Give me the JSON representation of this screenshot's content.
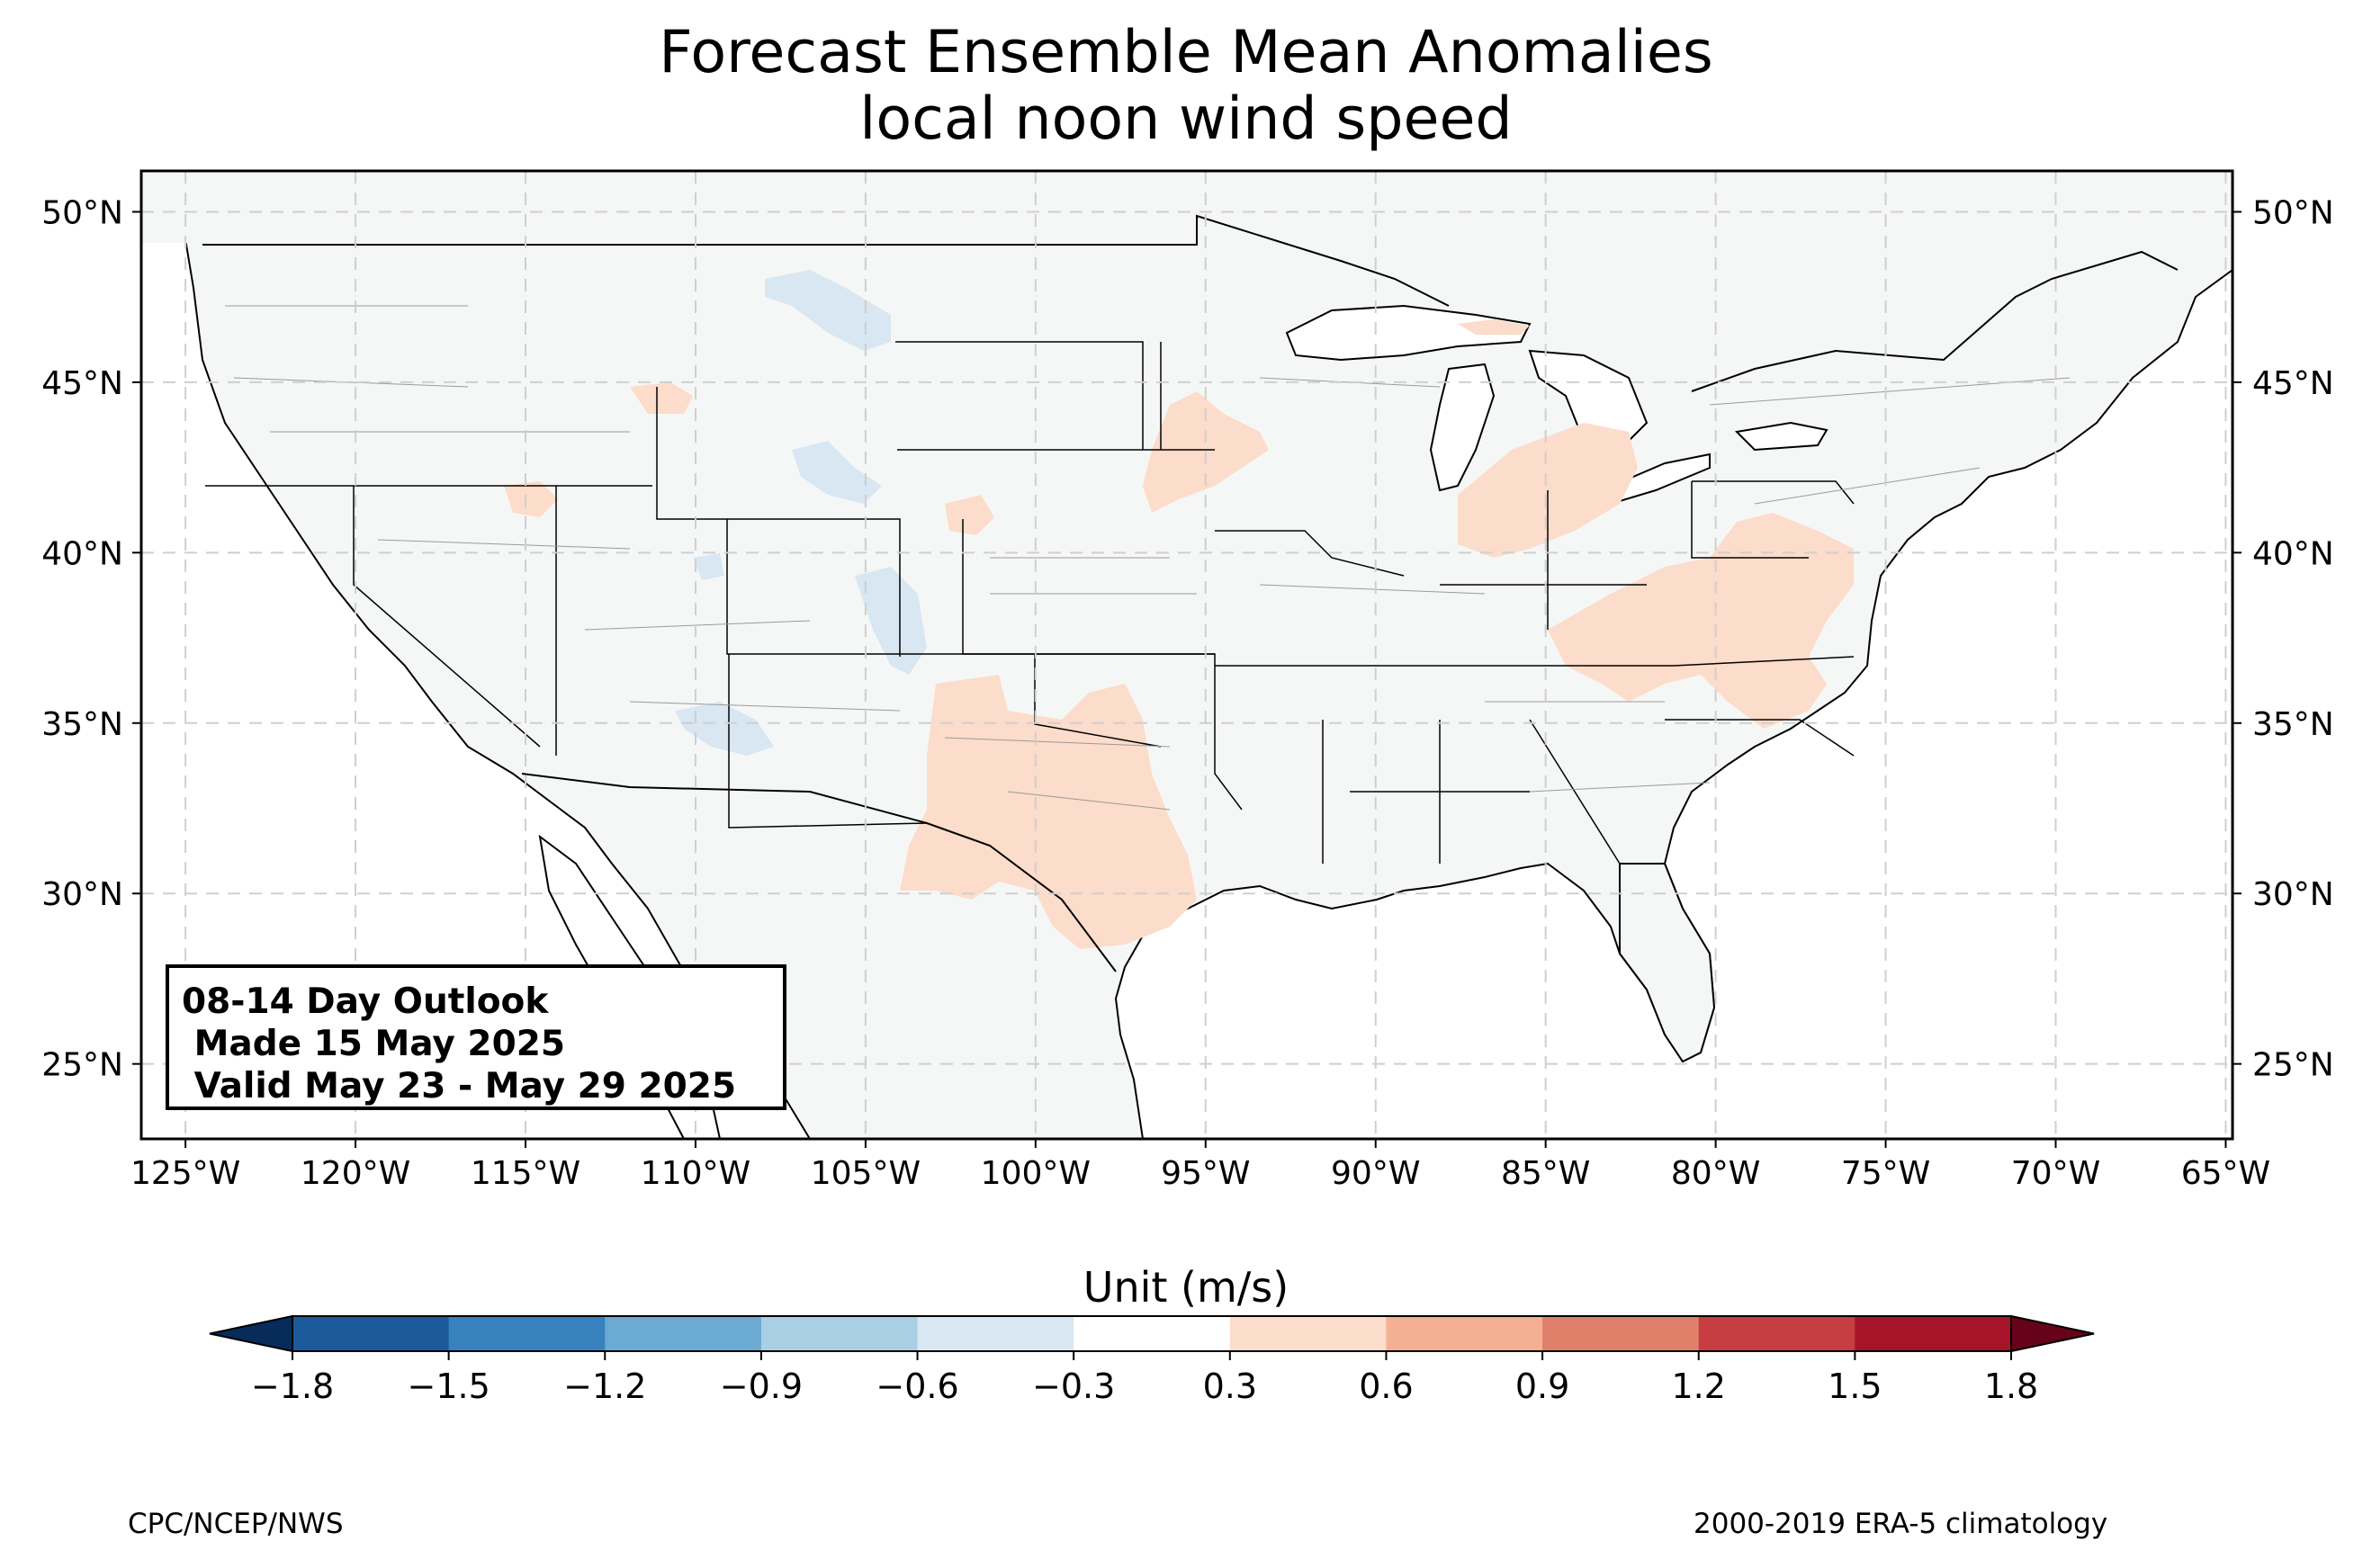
{
  "title": {
    "line1": "Forecast Ensemble Mean Anomalies",
    "line2": "local noon wind speed"
  },
  "info_box": {
    "line1": "08-14 Day Outlook",
    "line2": " Made 15 May 2025",
    "line3": " Valid May 23 - May 29 2025"
  },
  "map": {
    "lon_range": [
      -126.3,
      -64.8
    ],
    "lat_range": [
      22.8,
      51.2
    ],
    "lon_ticks": [
      "125°W",
      "120°W",
      "115°W",
      "110°W",
      "105°W",
      "100°W",
      "95°W",
      "90°W",
      "85°W",
      "80°W",
      "75°W",
      "70°W",
      "65°W"
    ],
    "lat_ticks": [
      "50°N",
      "45°N",
      "40°N",
      "35°N",
      "30°N",
      "25°N"
    ],
    "grid": true,
    "land_color": "#f5f7f6",
    "positive_anomaly_color": "#fcdcca",
    "negative_anomaly_color": "#d8e7f2"
  },
  "colorbar": {
    "label": "Unit (m/s)",
    "ticks": [
      "−1.8",
      "−1.5",
      "−1.2",
      "−0.9",
      "−0.6",
      "−0.3",
      "0.3",
      "0.6",
      "0.9",
      "1.2",
      "1.5",
      "1.8"
    ],
    "colors": [
      "#1c5a9c",
      "#3781be",
      "#6aaad3",
      "#a8cfe4",
      "#d8e7f1",
      "#ffffff",
      "#fcdcca",
      "#f4b092",
      "#e0806a",
      "#c63d42",
      "#a51428"
    ],
    "under_color": "#072c5c",
    "over_color": "#660219"
  },
  "footer": {
    "left": "CPC/NCEP/NWS",
    "right": "2000-2019 ERA-5 climatology"
  }
}
